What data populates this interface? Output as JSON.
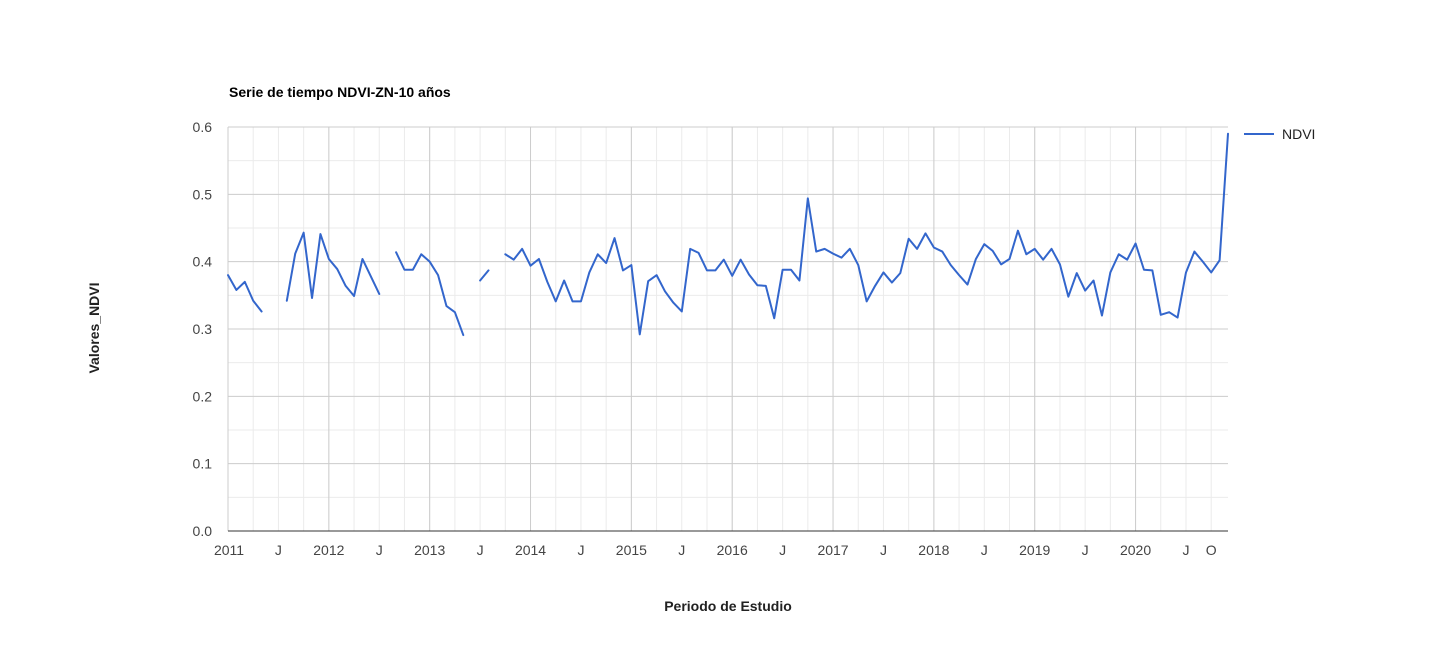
{
  "chart_data": {
    "type": "line",
    "title": "Serie de tiempo NDVI-ZN-10 años",
    "xlabel": "Periodo de Estudio",
    "ylabel": "Valores_NDVI",
    "ylim": [
      0.0,
      0.6
    ],
    "yticks": [
      "0.0",
      "0.1",
      "0.2",
      "0.3",
      "0.4",
      "0.5",
      "0.6"
    ],
    "xlim": [
      "2011-01",
      "2020-12"
    ],
    "xticks": [
      {
        "label": "2011",
        "at": "2011-01"
      },
      {
        "label": "J",
        "at": "2011-07"
      },
      {
        "label": "2012",
        "at": "2012-01"
      },
      {
        "label": "J",
        "at": "2012-07"
      },
      {
        "label": "2013",
        "at": "2013-01"
      },
      {
        "label": "J",
        "at": "2013-07"
      },
      {
        "label": "2014",
        "at": "2014-01"
      },
      {
        "label": "J",
        "at": "2014-07"
      },
      {
        "label": "2015",
        "at": "2015-01"
      },
      {
        "label": "J",
        "at": "2015-07"
      },
      {
        "label": "2016",
        "at": "2016-01"
      },
      {
        "label": "J",
        "at": "2016-07"
      },
      {
        "label": "2017",
        "at": "2017-01"
      },
      {
        "label": "J",
        "at": "2017-07"
      },
      {
        "label": "2018",
        "at": "2018-01"
      },
      {
        "label": "J",
        "at": "2018-07"
      },
      {
        "label": "2019",
        "at": "2019-01"
      },
      {
        "label": "J",
        "at": "2019-07"
      },
      {
        "label": "2020",
        "at": "2020-01"
      },
      {
        "label": "J",
        "at": "2020-07"
      },
      {
        "label": "O",
        "at": "2020-10"
      }
    ],
    "grid": true,
    "legend": "right",
    "series": [
      {
        "name": "NDVI",
        "color": "#3366cc",
        "x": [
          "2011-01",
          "2011-02",
          "2011-03",
          "2011-04",
          "2011-05",
          "2011-06",
          "2011-07",
          "2011-08",
          "2011-09",
          "2011-10",
          "2011-11",
          "2011-12",
          "2012-01",
          "2012-02",
          "2012-03",
          "2012-04",
          "2012-05",
          "2012-06",
          "2012-07",
          "2012-08",
          "2012-09",
          "2012-10",
          "2012-11",
          "2012-12",
          "2013-01",
          "2013-02",
          "2013-03",
          "2013-04",
          "2013-05",
          "2013-06",
          "2013-07",
          "2013-08",
          "2013-09",
          "2013-10",
          "2013-11",
          "2013-12",
          "2014-01",
          "2014-02",
          "2014-03",
          "2014-04",
          "2014-05",
          "2014-06",
          "2014-07",
          "2014-08",
          "2014-09",
          "2014-10",
          "2014-11",
          "2014-12",
          "2015-01",
          "2015-02",
          "2015-03",
          "2015-04",
          "2015-05",
          "2015-06",
          "2015-07",
          "2015-08",
          "2015-09",
          "2015-10",
          "2015-11",
          "2015-12",
          "2016-01",
          "2016-02",
          "2016-03",
          "2016-04",
          "2016-05",
          "2016-06",
          "2016-07",
          "2016-08",
          "2016-09",
          "2016-10",
          "2016-11",
          "2016-12",
          "2017-01",
          "2017-02",
          "2017-03",
          "2017-04",
          "2017-05",
          "2017-06",
          "2017-07",
          "2017-08",
          "2017-09",
          "2017-10",
          "2017-11",
          "2017-12",
          "2018-01",
          "2018-02",
          "2018-03",
          "2018-04",
          "2018-05",
          "2018-06",
          "2018-07",
          "2018-08",
          "2018-09",
          "2018-10",
          "2018-11",
          "2018-12",
          "2019-01",
          "2019-02",
          "2019-03",
          "2019-04",
          "2019-05",
          "2019-06",
          "2019-07",
          "2019-08",
          "2019-09",
          "2019-10",
          "2019-11",
          "2019-12",
          "2020-01",
          "2020-02",
          "2020-03",
          "2020-04",
          "2020-05",
          "2020-06",
          "2020-07",
          "2020-08",
          "2020-09",
          "2020-10",
          "2020-11",
          "2020-12"
        ],
        "values": [
          0.38,
          0.358,
          0.37,
          0.342,
          0.326,
          null,
          null,
          0.342,
          0.412,
          0.443,
          0.346,
          0.441,
          0.404,
          0.389,
          0.364,
          0.349,
          0.404,
          0.378,
          0.352,
          null,
          0.414,
          0.388,
          0.388,
          0.411,
          0.4,
          0.38,
          0.334,
          0.325,
          0.291,
          null,
          0.372,
          0.387,
          null,
          0.411,
          0.403,
          0.419,
          0.394,
          0.404,
          0.37,
          0.341,
          0.372,
          0.341,
          0.341,
          0.384,
          0.411,
          0.398,
          0.435,
          0.387,
          0.395,
          0.292,
          0.371,
          0.38,
          0.356,
          0.339,
          0.326,
          0.419,
          0.413,
          0.387,
          0.387,
          0.403,
          0.379,
          0.403,
          0.381,
          0.365,
          0.364,
          0.316,
          0.388,
          0.388,
          0.372,
          0.494,
          0.415,
          0.419,
          0.412,
          0.406,
          0.419,
          0.395,
          0.341,
          0.364,
          0.384,
          0.369,
          0.383,
          0.434,
          0.419,
          0.442,
          0.421,
          0.415,
          0.395,
          0.38,
          0.366,
          0.404,
          0.426,
          0.416,
          0.396,
          0.404,
          0.446,
          0.411,
          0.419,
          0.403,
          0.419,
          0.396,
          0.348,
          0.383,
          0.357,
          0.372,
          0.32,
          0.384,
          0.411,
          0.403,
          0.427,
          0.388,
          0.387,
          0.321,
          0.325,
          0.317,
          0.384,
          0.415,
          0.4,
          0.384,
          0.402,
          0.59
        ]
      }
    ]
  }
}
